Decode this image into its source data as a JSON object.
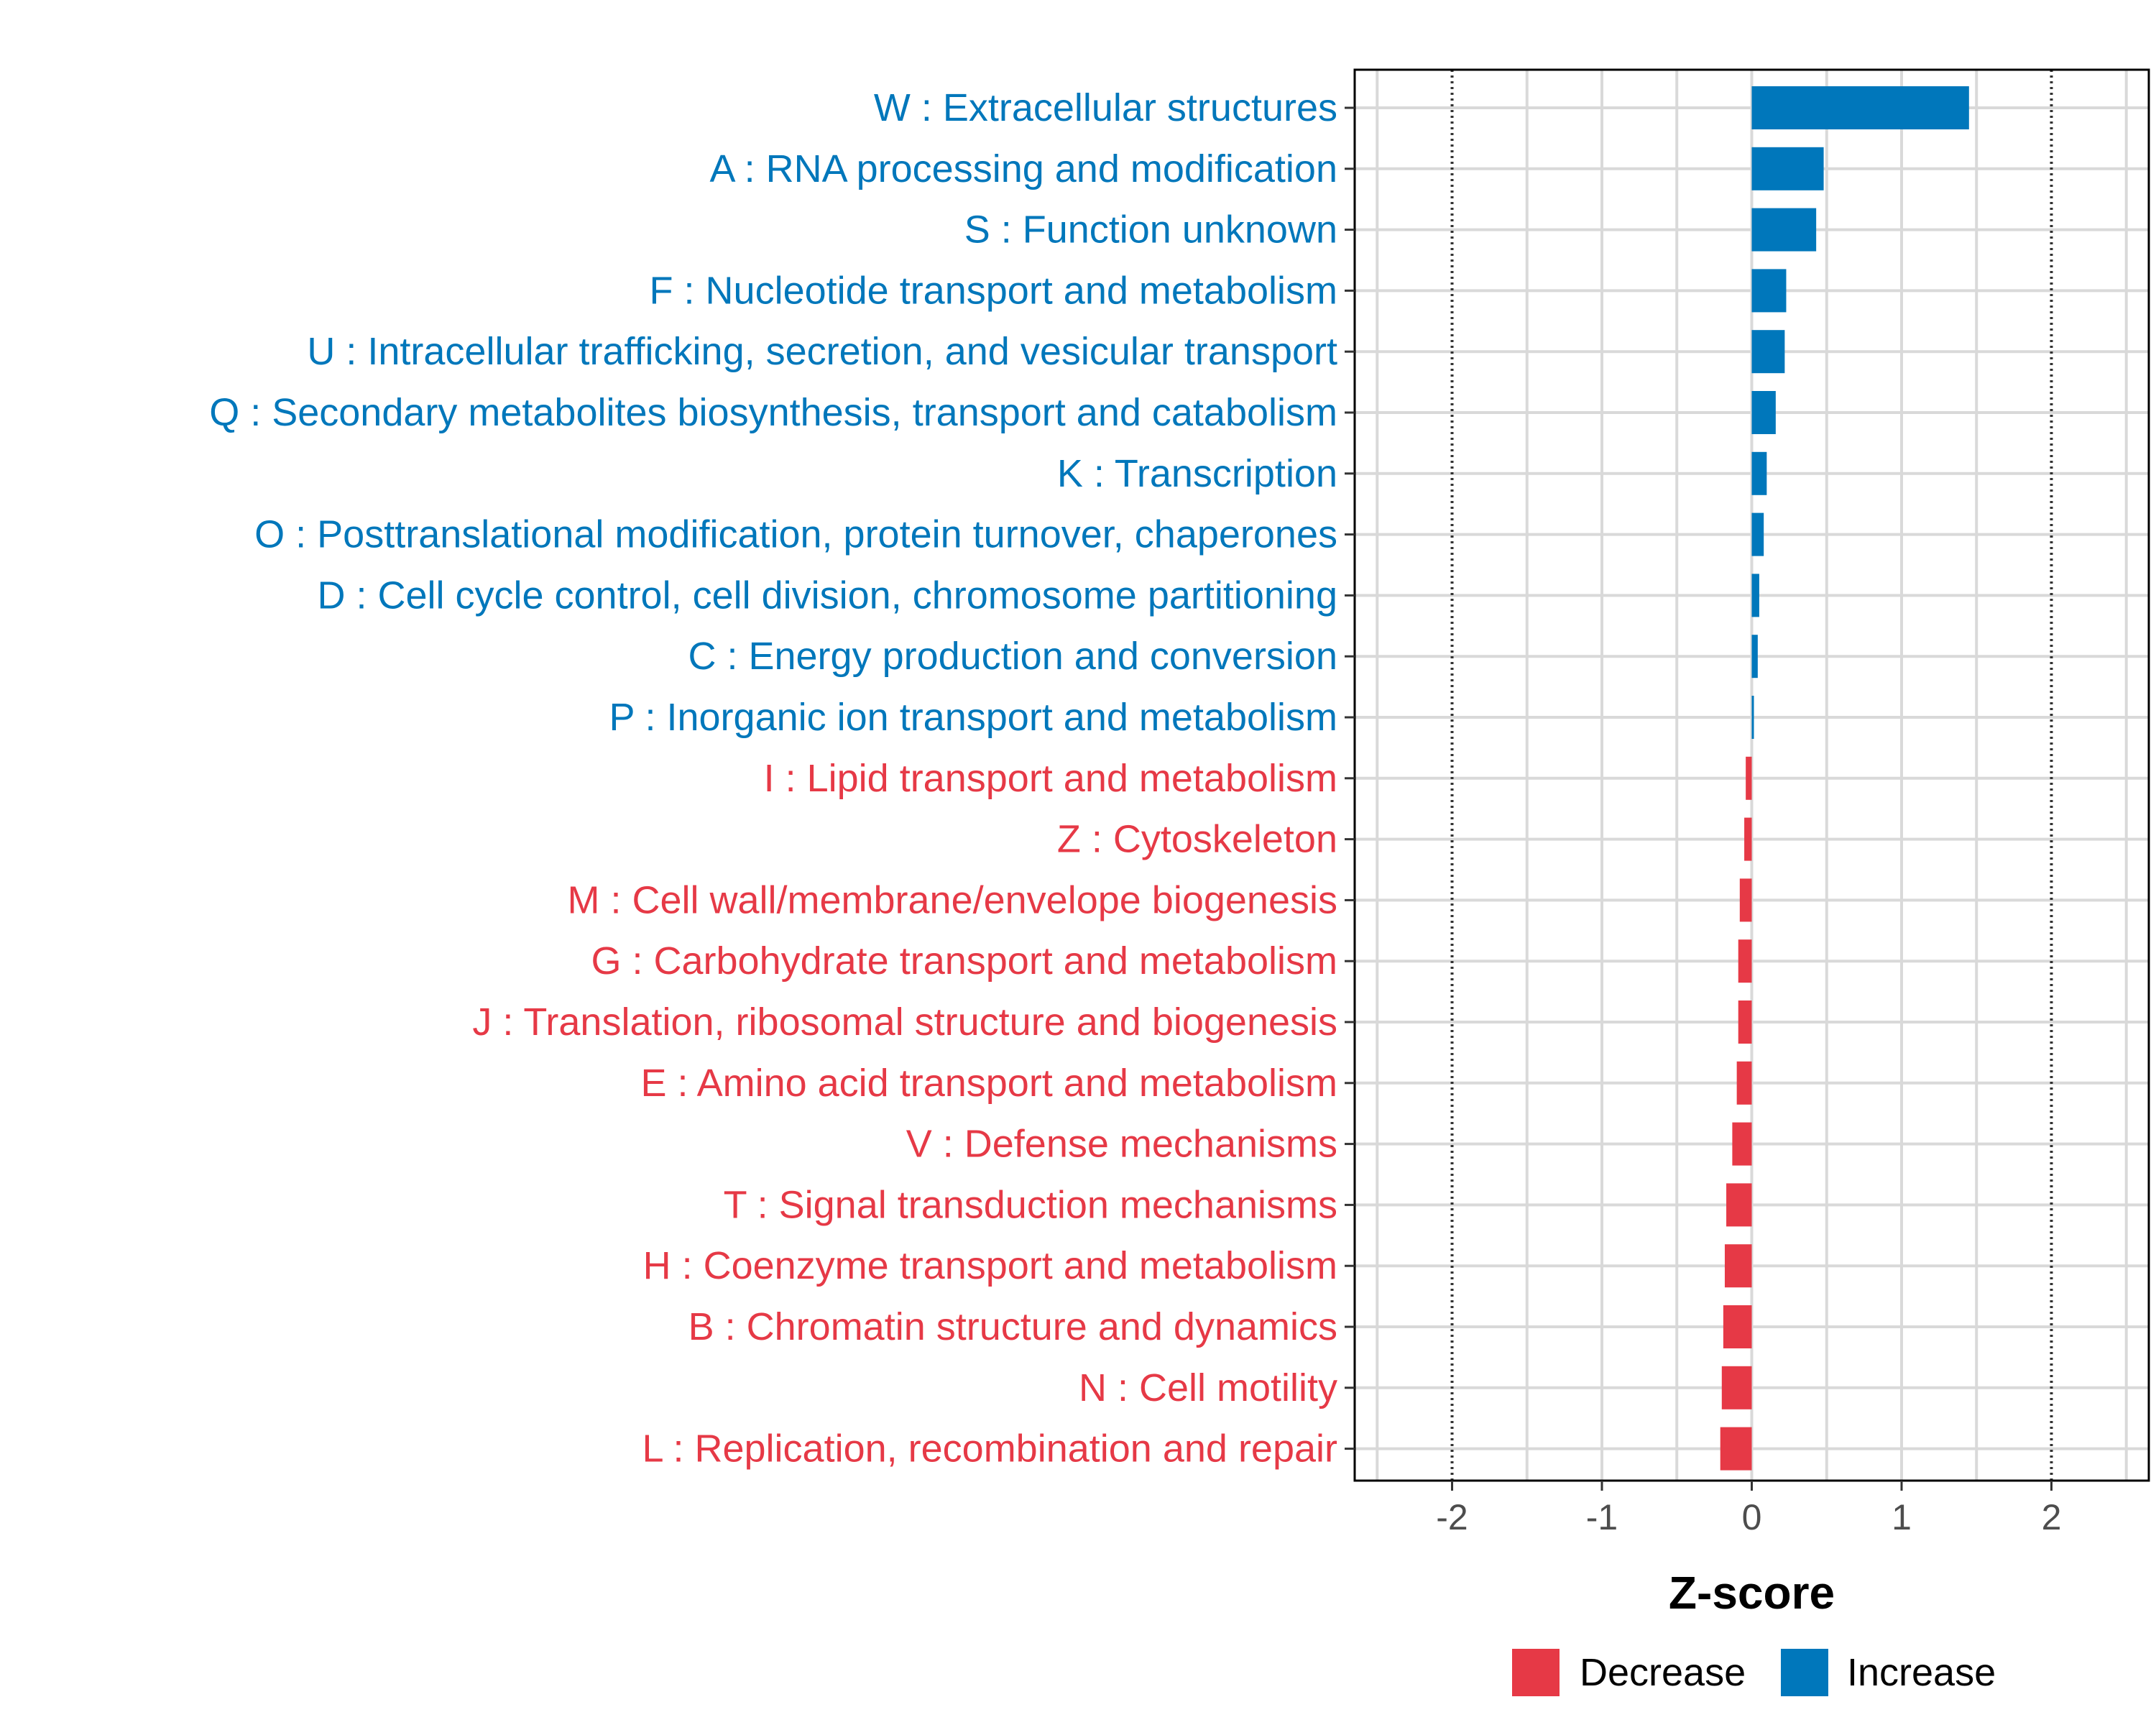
{
  "chart_data": {
    "type": "bar",
    "orientation": "horizontal",
    "xlabel": "Z-score",
    "xlim": [
      -2.65,
      2.65
    ],
    "xticks": [
      -2,
      -1,
      0,
      1,
      2
    ],
    "xtick_labels": [
      "-2",
      "-1",
      "0",
      "1",
      "2"
    ],
    "reference_lines": [
      -2,
      2
    ],
    "grid": true,
    "categories": [
      "W : Extracellular structures",
      "A : RNA processing and modification",
      "S : Function unknown",
      "F : Nucleotide transport and metabolism",
      "U : Intracellular trafficking, secretion, and vesicular transport",
      "Q : Secondary metabolites biosynthesis, transport and catabolism",
      "K : Transcription",
      "O : Posttranslational modification, protein turnover, chaperones",
      "D : Cell cycle control, cell division, chromosome partitioning",
      "C : Energy production and conversion",
      "P : Inorganic ion transport and metabolism",
      "I : Lipid transport and metabolism",
      "Z : Cytoskeleton",
      "M : Cell wall/membrane/envelope biogenesis",
      "G : Carbohydrate transport and metabolism",
      "J : Translation, ribosomal structure and biogenesis",
      "E : Amino acid transport and metabolism",
      "V : Defense mechanisms",
      "T : Signal transduction mechanisms",
      "H : Coenzyme transport and metabolism",
      "B : Chromatin structure and dynamics",
      "N : Cell motility",
      "L : Replication, recombination and repair"
    ],
    "values": [
      1.45,
      0.48,
      0.43,
      0.23,
      0.22,
      0.16,
      0.1,
      0.08,
      0.05,
      0.04,
      0.01,
      -0.04,
      -0.05,
      -0.08,
      -0.09,
      -0.09,
      -0.1,
      -0.13,
      -0.17,
      -0.18,
      -0.19,
      -0.2,
      -0.21
    ],
    "legend": {
      "position": "bottom",
      "entries": [
        {
          "label": "Decrease",
          "color": "#E63946"
        },
        {
          "label": "Increase",
          "color": "#0077BB"
        }
      ]
    },
    "colors": {
      "increase": "#0077BB",
      "decrease": "#E63946",
      "grid": "#d9d9d9",
      "reference_line": "#333333",
      "axis": "#000000"
    }
  }
}
